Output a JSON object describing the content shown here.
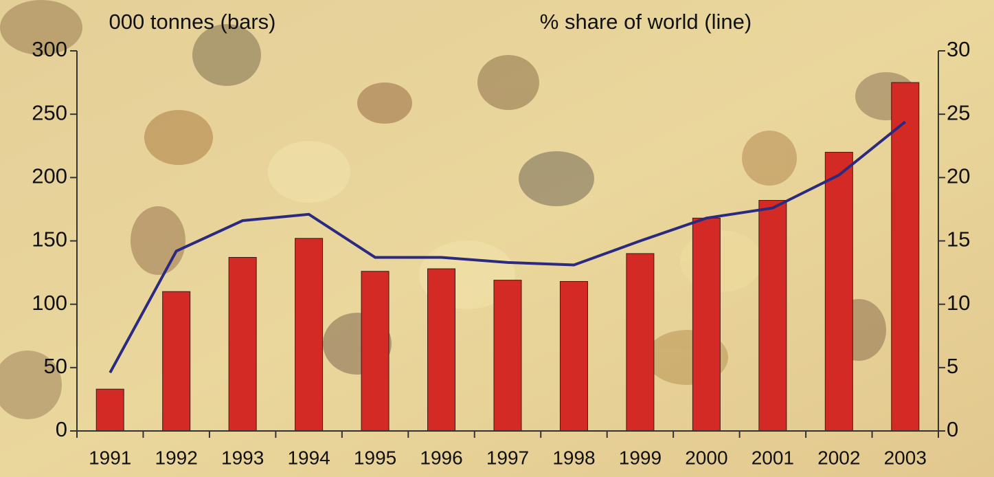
{
  "chart_data": {
    "type": "bar-line",
    "y_label": "000 tonnes (bars)",
    "y2_label": "% share of world (line)",
    "categories": [
      "1991",
      "1992",
      "1993",
      "1994",
      "1995",
      "1996",
      "1997",
      "1998",
      "1999",
      "2000",
      "2001",
      "2002",
      "2003"
    ],
    "series": [
      {
        "name": "000 tonnes",
        "type": "bar",
        "color": "#d42a26",
        "values": [
          33,
          110,
          137,
          152,
          126,
          128,
          119,
          118,
          140,
          168,
          182,
          220,
          275
        ]
      },
      {
        "name": "% share of world",
        "type": "line",
        "axis": "y2",
        "color": "#2b2a80",
        "values": [
          4.6,
          14.2,
          16.6,
          17.1,
          13.7,
          13.7,
          13.3,
          13.1,
          15.0,
          16.8,
          17.6,
          20.2,
          24.4
        ]
      }
    ],
    "ylim": [
      0,
      300
    ],
    "yticks": [
      0,
      50,
      100,
      150,
      200,
      250,
      300
    ],
    "y2lim": [
      0,
      30
    ],
    "y2ticks": [
      0,
      5,
      10,
      15,
      20,
      25,
      30
    ]
  }
}
